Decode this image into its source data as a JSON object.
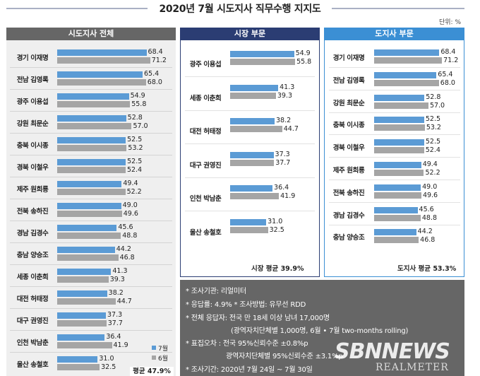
{
  "title": "2020년 7월 시도지사 직무수행 지지도",
  "unit": "단위: %",
  "colors": {
    "jul": "#5b9bd5",
    "jun": "#a5a5a5",
    "mayor_header": "#2b3d73",
    "governor_header": "#3b8fd4",
    "all_header": "#666666"
  },
  "chart_data": [
    {
      "type": "bar",
      "title": "시도지사 전체",
      "series_names": [
        "7월",
        "6월"
      ],
      "xlim": [
        0,
        100
      ],
      "rows": [
        {
          "label": "경기 이재명",
          "jul": 68.4,
          "jun": 71.2
        },
        {
          "label": "전남 김영록",
          "jul": 65.4,
          "jun": 68.0
        },
        {
          "label": "광주 이용섭",
          "jul": 54.9,
          "jun": 55.8
        },
        {
          "label": "강원 최문순",
          "jul": 52.8,
          "jun": 57.0
        },
        {
          "label": "충북 이시종",
          "jul": 52.5,
          "jun": 53.2
        },
        {
          "label": "경북 이철우",
          "jul": 52.5,
          "jun": 52.4
        },
        {
          "label": "제주 원희룡",
          "jul": 49.4,
          "jun": 52.2
        },
        {
          "label": "전북 송하진",
          "jul": 49.0,
          "jun": 49.6
        },
        {
          "label": "경남 김경수",
          "jul": 45.6,
          "jun": 48.8
        },
        {
          "label": "충남 양승조",
          "jul": 44.2,
          "jun": 46.8
        },
        {
          "label": "세종 이춘희",
          "jul": 41.3,
          "jun": 39.3
        },
        {
          "label": "대전 허태정",
          "jul": 38.2,
          "jun": 44.7
        },
        {
          "label": "대구 권영진",
          "jul": 37.3,
          "jun": 37.7
        },
        {
          "label": "인천 박남춘",
          "jul": 36.4,
          "jun": 41.9
        },
        {
          "label": "울산 송철호",
          "jul": 31.0,
          "jun": 32.5
        }
      ],
      "legend": [
        "7월",
        "6월"
      ],
      "average": "평균 47.9%"
    },
    {
      "type": "bar",
      "title": "시장 부문",
      "xlim": [
        0,
        100
      ],
      "rows": [
        {
          "label": "광주 이용섭",
          "jul": 54.9,
          "jun": 55.8
        },
        {
          "label": "세종 이춘희",
          "jul": 41.3,
          "jun": 39.3
        },
        {
          "label": "대전 허태정",
          "jul": 38.2,
          "jun": 44.7
        },
        {
          "label": "대구 권영진",
          "jul": 37.3,
          "jun": 37.7
        },
        {
          "label": "인천 박남춘",
          "jul": 36.4,
          "jun": 41.9
        },
        {
          "label": "울산 송철호",
          "jul": 31.0,
          "jun": 32.5
        }
      ],
      "average": "시장 평균 39.9%"
    },
    {
      "type": "bar",
      "title": "도지사 부문",
      "xlim": [
        0,
        100
      ],
      "rows": [
        {
          "label": "경기 이재명",
          "jul": 68.4,
          "jun": 71.2
        },
        {
          "label": "전남 김영록",
          "jul": 65.4,
          "jun": 68.0
        },
        {
          "label": "강원 최문순",
          "jul": 52.8,
          "jun": 57.0
        },
        {
          "label": "충북 이시종",
          "jul": 52.5,
          "jun": 53.2
        },
        {
          "label": "경북 이철우",
          "jul": 52.5,
          "jun": 52.4
        },
        {
          "label": "제주 원희룡",
          "jul": 49.4,
          "jun": 52.2
        },
        {
          "label": "전북 송하진",
          "jul": 49.0,
          "jun": 49.6
        },
        {
          "label": "경남 김경수",
          "jul": 45.6,
          "jun": 48.8
        },
        {
          "label": "충남 양승조",
          "jul": 44.2,
          "jun": 46.8
        }
      ],
      "average": "도지사 평균 53.3%"
    }
  ],
  "notes": [
    "* 조사기관: 리얼미터",
    "* 응답률: 4.9% * 조사방법: 유무선 RDD",
    "* 전체 응답자: 전국 만 18세 이상 남녀 17,000명",
    "(광역자치단체별 1,000명, 6월 • 7월 two-months rolling)",
    "* 표집오차 : 전국 95%신뢰수준 ±0.8%p",
    "광역자치단체별 95%신뢰수준 ±3.1%p",
    "* 조사기간: 2020년 7월 24일 ~ 7월 30일"
  ],
  "watermark": {
    "line1": "SBNNEWS",
    "line2": "REALMETER"
  }
}
